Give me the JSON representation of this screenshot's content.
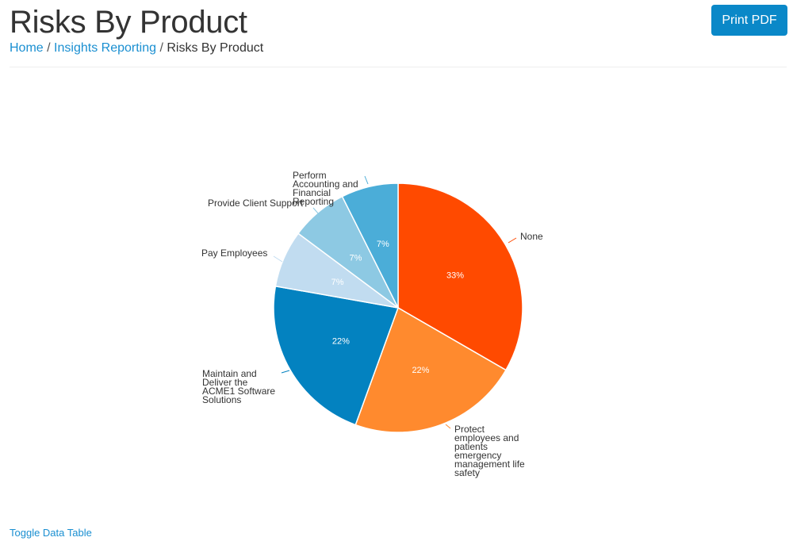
{
  "header": {
    "title": "Risks By Product",
    "print_label": "Print PDF",
    "breadcrumb": [
      {
        "label": "Home",
        "link": true
      },
      {
        "label": "Insights Reporting",
        "link": true
      },
      {
        "label": "Risks By Product",
        "link": false
      }
    ],
    "separator": "/"
  },
  "footer": {
    "toggle_label": "Toggle Data Table"
  },
  "chart_data": {
    "type": "pie",
    "title": "",
    "slices": [
      {
        "label": "None",
        "value": 9,
        "percent_label": "33%",
        "color": "#ff4a00"
      },
      {
        "label": "Protect employees and patients emergency management life safety",
        "value": 6,
        "percent_label": "22%",
        "color": "#ff8a2e"
      },
      {
        "label": "Maintain and Deliver the ACME1 Software Solutions",
        "value": 6,
        "percent_label": "22%",
        "color": "#0382c0"
      },
      {
        "label": "Pay Employees",
        "value": 2,
        "percent_label": "7%",
        "color": "#c1dcf0"
      },
      {
        "label": "Provide Client Support",
        "value": 2,
        "percent_label": "7%",
        "color": "#8dc9e3"
      },
      {
        "label": "Perform Accounting and Financial Reporting",
        "value": 2,
        "percent_label": "7%",
        "color": "#4badd8"
      }
    ]
  }
}
